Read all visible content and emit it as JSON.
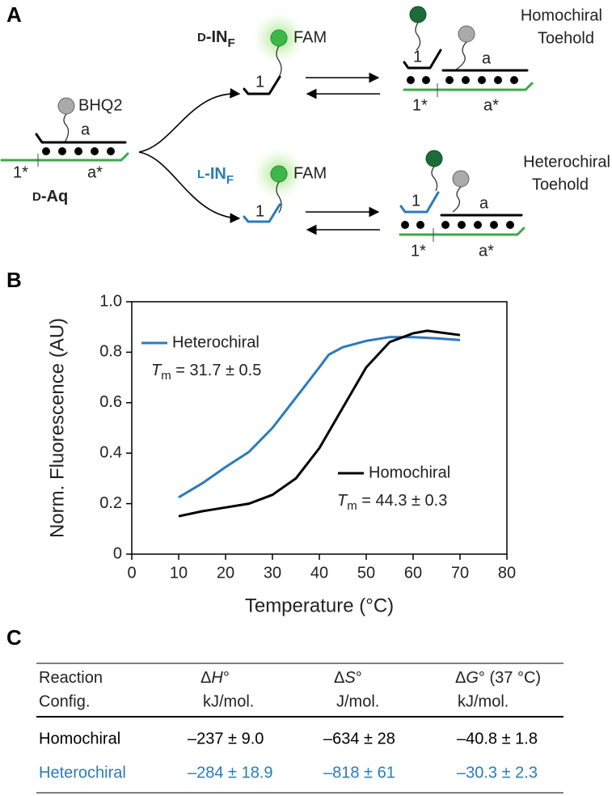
{
  "panel_labels": [
    "A",
    "B",
    "C"
  ],
  "panel_a": {
    "d_aq": {
      "quencher": "BHQ2",
      "top_domain": "a",
      "toehold_comp": "1*",
      "domain_comp": "a*",
      "name_prefix": "D",
      "name": "-Aq"
    },
    "d_in": {
      "prefix": "D",
      "name": "-IN",
      "subscript": "F",
      "dye": "FAM",
      "domain": "1"
    },
    "l_in": {
      "prefix": "L",
      "name": "-IN",
      "subscript": "F",
      "dye": "FAM",
      "domain": "1"
    },
    "homochiral": {
      "title": [
        "Homochiral",
        "Toehold"
      ],
      "domain_1": "1",
      "domain_a": "a",
      "comp_1": "1*",
      "comp_a": "a*"
    },
    "heterochiral": {
      "title": [
        "Heterochiral",
        "Toehold"
      ],
      "domain_1": "1",
      "domain_a": "a",
      "comp_1": "1*",
      "comp_a": "a*"
    }
  },
  "chart_data": {
    "type": "line",
    "x_label": "Temperature (°C)",
    "y_label": "Norm. Fluorescence (AU)",
    "xlim": [
      0,
      80
    ],
    "xticks": [
      0,
      10,
      20,
      30,
      40,
      50,
      60,
      70,
      80
    ],
    "ylim": [
      0,
      1
    ],
    "yticks": [
      0,
      0.2,
      0.4,
      0.6,
      0.8,
      {
        "value": 1,
        "label": "1.0"
      }
    ],
    "tm_symbol": {
      "base": "T",
      "sub": "m"
    },
    "series": [
      {
        "name": "Heterochiral",
        "color": "#2b7bba",
        "tm_text": " = 31.7 ± 0.5",
        "x": [
          10,
          15,
          20,
          25,
          30,
          35,
          40,
          42,
          45,
          50,
          55,
          60,
          65,
          70
        ],
        "values": [
          0.225,
          0.28,
          0.345,
          0.405,
          0.5,
          0.62,
          0.74,
          0.79,
          0.82,
          0.845,
          0.86,
          0.86,
          0.855,
          0.848
        ]
      },
      {
        "name": "Homochiral",
        "color": "#000000",
        "tm_text": " = 44.3 ± 0.3",
        "x": [
          10,
          15,
          20,
          25,
          30,
          35,
          40,
          45,
          50,
          55,
          60,
          63,
          65,
          70
        ],
        "values": [
          0.15,
          0.17,
          0.185,
          0.2,
          0.235,
          0.3,
          0.42,
          0.58,
          0.74,
          0.84,
          0.875,
          0.885,
          0.88,
          0.868
        ]
      }
    ]
  },
  "table": {
    "header": [
      {
        "line1": [
          "Reaction"
        ],
        "line2": "Config."
      },
      {
        "line1": [
          "Δ",
          "H",
          "°"
        ],
        "line2": "kJ/mol."
      },
      {
        "line1": [
          "Δ",
          "S",
          "°"
        ],
        "line2": "J/mol."
      },
      {
        "line1": [
          "Δ",
          "G",
          "° (37 °C)"
        ],
        "line2": "kJ/mol."
      }
    ],
    "rows": [
      {
        "color": "#000000",
        "cells": [
          "Homochiral",
          "–237 ± 9.0",
          "–634 ± 28",
          "–40.8 ± 1.8"
        ]
      },
      {
        "color": "#2b7bba",
        "cells": [
          "Heterochiral",
          "–284 ± 18.9",
          "–818 ± 61",
          "–30.3 ± 2.3"
        ]
      }
    ]
  }
}
